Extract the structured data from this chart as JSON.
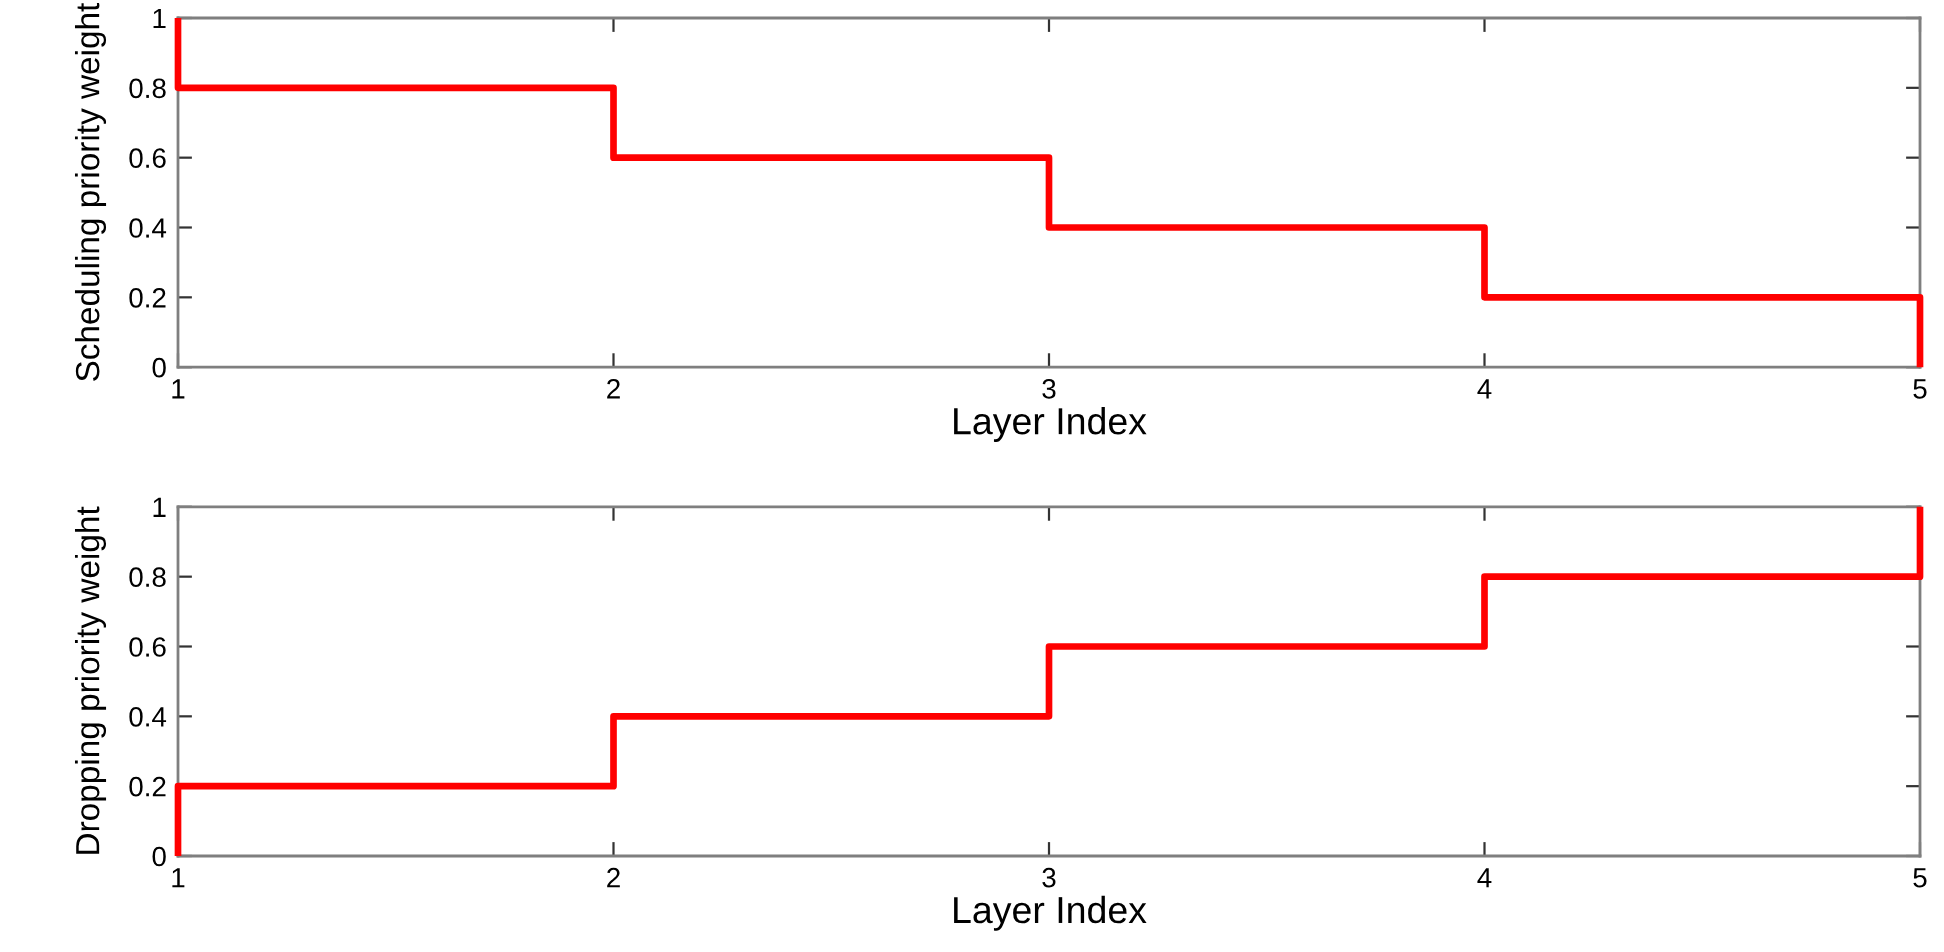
{
  "chart_data": [
    {
      "type": "step",
      "x": [
        1,
        1,
        2,
        3,
        4,
        5,
        5
      ],
      "values": [
        1,
        0.8,
        0.6,
        0.4,
        0.2,
        0.2,
        0
      ],
      "color": "#ff0000",
      "line_style": "solid",
      "xlabel": "Layer Index",
      "ylabel": "Scheduling priority weight",
      "xlim": [
        1,
        5
      ],
      "ylim": [
        0,
        1
      ],
      "xticks": [
        1,
        2,
        3,
        4,
        5
      ],
      "yticks": [
        0,
        0.2,
        0.4,
        0.6,
        0.8,
        1
      ],
      "grid": false
    },
    {
      "type": "step",
      "x": [
        1,
        1,
        2,
        3,
        4,
        5,
        5
      ],
      "values": [
        0,
        0.2,
        0.4,
        0.6,
        0.8,
        0.8,
        1
      ],
      "color": "#ff0000",
      "line_style": "solid",
      "xlabel": "Layer Index",
      "ylabel": "Dropping priority weight",
      "xlim": [
        1,
        5
      ],
      "ylim": [
        0,
        1
      ],
      "xticks": [
        1,
        2,
        3,
        4,
        5
      ],
      "yticks": [
        0,
        0.2,
        0.4,
        0.6,
        0.8,
        1
      ],
      "grid": false
    }
  ]
}
